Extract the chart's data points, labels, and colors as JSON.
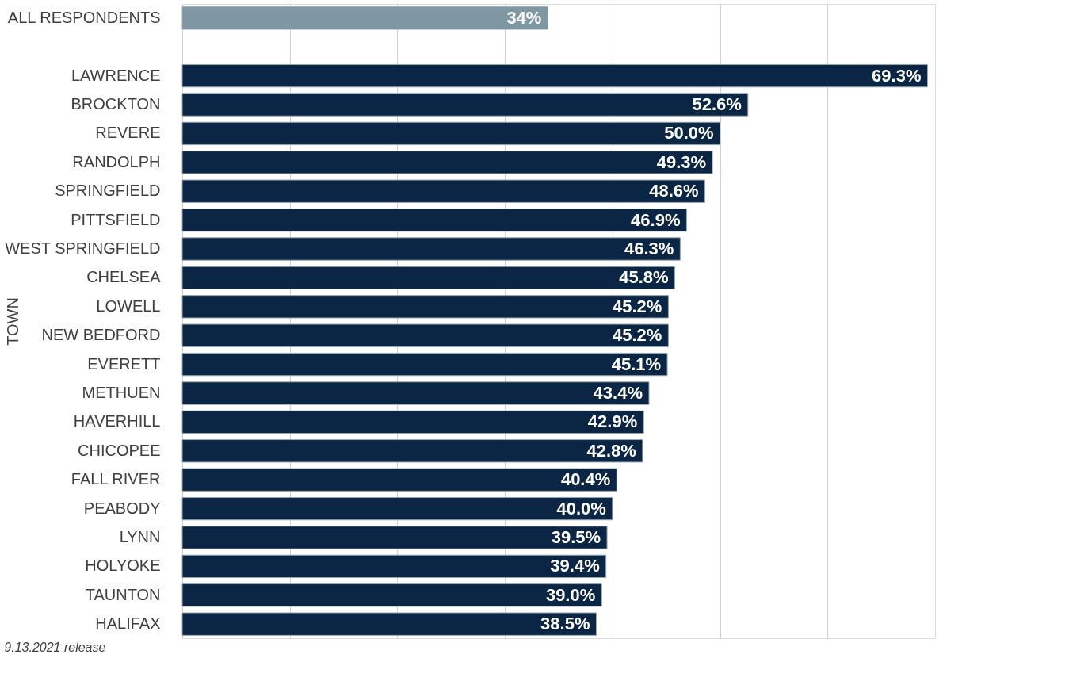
{
  "chart_data": {
    "type": "bar",
    "orientation": "horizontal",
    "ylabel": "TOWN",
    "categories": [
      "ALL RESPONDENTS",
      null,
      "LAWRENCE",
      "BROCKTON",
      "REVERE",
      "RANDOLPH",
      "SPRINGFIELD",
      "PITTSFIELD",
      "WEST SPRINGFIELD",
      "CHELSEA",
      "LOWELL",
      "NEW BEDFORD",
      "EVERETT",
      "METHUEN",
      "HAVERHILL",
      "CHICOPEE",
      "FALL RIVER",
      "PEABODY",
      "LYNN",
      "HOLYOKE",
      "TAUNTON",
      "HALIFAX"
    ],
    "values": [
      34,
      null,
      69.3,
      52.6,
      50.0,
      49.3,
      48.6,
      46.9,
      46.3,
      45.8,
      45.2,
      45.2,
      45.1,
      43.4,
      42.9,
      42.8,
      40.4,
      40.0,
      39.5,
      39.4,
      39.0,
      38.5
    ],
    "value_labels": [
      "34%",
      null,
      "69.3%",
      "52.6%",
      "50.0%",
      "49.3%",
      "48.6%",
      "46.9%",
      "46.3%",
      "45.8%",
      "45.2%",
      "45.2%",
      "45.1%",
      "43.4%",
      "42.9%",
      "42.8%",
      "40.4%",
      "40.0%",
      "39.5%",
      "39.4%",
      "39.0%",
      "38.5%"
    ],
    "colors": [
      "#7f96a3",
      "#0b2545",
      "#0b2545",
      "#0b2545",
      "#0b2545",
      "#0b2545",
      "#0b2545",
      "#0b2545",
      "#0b2545",
      "#0b2545",
      "#0b2545",
      "#0b2545",
      "#0b2545",
      "#0b2545",
      "#0b2545",
      "#0b2545",
      "#0b2545",
      "#0b2545",
      "#0b2545",
      "#0b2545",
      "#0b2545",
      "#0b2545"
    ],
    "xlim": [
      0,
      70
    ],
    "xticks": [
      {
        "value": 0,
        "label": null
      },
      {
        "value": 10,
        "label": null
      },
      {
        "value": 20,
        "label": null
      },
      {
        "value": 30,
        "label": null
      },
      {
        "value": 40,
        "label": null
      },
      {
        "value": 50,
        "label": null
      },
      {
        "value": 60,
        "label": null
      }
    ],
    "grid": "x",
    "tick_labels": "y",
    "annotations": [
      "9.13.2021 release"
    ]
  }
}
